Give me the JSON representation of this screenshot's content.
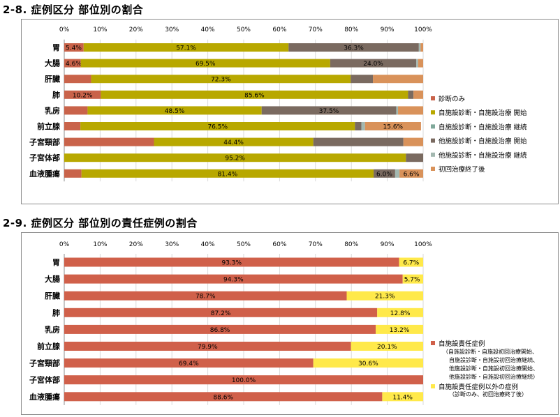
{
  "section1": {
    "title": "2-8.  症例区分  部位別の割合"
  },
  "section2": {
    "title": "2-9.  症例区分  部位別の責任症例の割合"
  },
  "chart_data": [
    {
      "type": "bar",
      "orientation": "horizontal",
      "stacked": "percent",
      "xlim": [
        0,
        100
      ],
      "x_ticks": [
        "0%",
        "10%",
        "20%",
        "30%",
        "40%",
        "50%",
        "60%",
        "70%",
        "80%",
        "90%",
        "100%"
      ],
      "grid": true,
      "legend_position": "right",
      "categories": [
        "胃",
        "大腸",
        "肝臓",
        "肺",
        "乳房",
        "前立腺",
        "子宮頸部",
        "子宮体部",
        "血液腫瘍"
      ],
      "series": [
        {
          "name": "診断のみ",
          "color": "#c9634a",
          "values": [
            5.4,
            4.6,
            7.5,
            10.2,
            6.5,
            4.5,
            25.0,
            0.0,
            4.8
          ],
          "labels": [
            "5.4%",
            "4.6%",
            "",
            "10.2%",
            "",
            "",
            "",
            "",
            ""
          ]
        },
        {
          "name": "自施設診断・自施設治療 開始",
          "color": "#b8a800",
          "values": [
            57.1,
            69.5,
            72.3,
            85.6,
            48.5,
            76.5,
            44.4,
            95.2,
            81.4
          ],
          "labels": [
            "57.1%",
            "69.5%",
            "72.3%",
            "85.6%",
            "48.5%",
            "76.5%",
            "44.4%",
            "95.2%",
            "81.4%"
          ]
        },
        {
          "name": "自施設診断・自施設治療 継続",
          "color": "#7fa89a",
          "values": [
            0.0,
            0.0,
            0.0,
            0.0,
            0.0,
            0.0,
            0.0,
            0.0,
            0.0
          ],
          "labels": [
            "",
            "",
            "",
            "",
            "",
            "",
            "",
            "",
            ""
          ]
        },
        {
          "name": "他施設診断・自施設治療 開始",
          "color": "#7a6a60",
          "values": [
            36.3,
            24.0,
            6.2,
            1.5,
            37.5,
            1.8,
            25.1,
            4.8,
            6.0
          ],
          "labels": [
            "36.3%",
            "24.0%",
            "",
            "",
            "37.5%",
            "",
            "",
            "",
            "6.0%"
          ]
        },
        {
          "name": "他施設診断・自施設治療 継続",
          "color": "#a3b8b0",
          "values": [
            0.5,
            0.5,
            0.0,
            0.0,
            0.5,
            1.0,
            0.0,
            0.0,
            1.2
          ],
          "labels": [
            "",
            "",
            "",
            "",
            "",
            "",
            "",
            "",
            ""
          ]
        },
        {
          "name": "初回治療終了後",
          "color": "#d9925a",
          "values": [
            0.7,
            1.4,
            14.0,
            2.7,
            7.0,
            15.6,
            5.5,
            0.0,
            6.6
          ],
          "labels": [
            "",
            "",
            "",
            "",
            "",
            "15.6%",
            "",
            "",
            "6.6%"
          ]
        }
      ]
    },
    {
      "type": "bar",
      "orientation": "horizontal",
      "stacked": "percent",
      "xlim": [
        0,
        100
      ],
      "x_ticks": [
        "0%",
        "10%",
        "20%",
        "30%",
        "40%",
        "50%",
        "60%",
        "70%",
        "80%",
        "90%",
        "100%"
      ],
      "grid": true,
      "legend_position": "right",
      "categories": [
        "胃",
        "大腸",
        "肝臓",
        "肺",
        "乳房",
        "前立腺",
        "子宮頸部",
        "子宮体部",
        "血液腫瘍"
      ],
      "series": [
        {
          "name": "自施設責任症例",
          "color": "#d0604a",
          "values": [
            93.3,
            94.3,
            78.7,
            87.2,
            86.8,
            79.9,
            69.4,
            100.0,
            88.6
          ],
          "labels": [
            "93.3%",
            "94.3%",
            "78.7%",
            "87.2%",
            "86.8%",
            "79.9%",
            "69.4%",
            "100.0%",
            "88.6%"
          ]
        },
        {
          "name": "自施設責任症例以外の症例",
          "color": "#ffe94a",
          "values": [
            6.7,
            5.7,
            21.3,
            12.8,
            13.2,
            20.1,
            30.6,
            0.0,
            11.4
          ],
          "labels": [
            "6.7%",
            "5.7%",
            "21.3%",
            "12.8%",
            "13.2%",
            "20.1%",
            "30.6%",
            "",
            "11.4%"
          ]
        }
      ],
      "legend_notes": [
        "（自施設診断・自施設初回治療開始、",
        "自施設診断・自施設初回治療継続、",
        "他施設診断・自施設初回治療開始、",
        "他施設診断・自施設初回治療継続）",
        "（診断のみ、初回治療終了後）"
      ]
    }
  ]
}
